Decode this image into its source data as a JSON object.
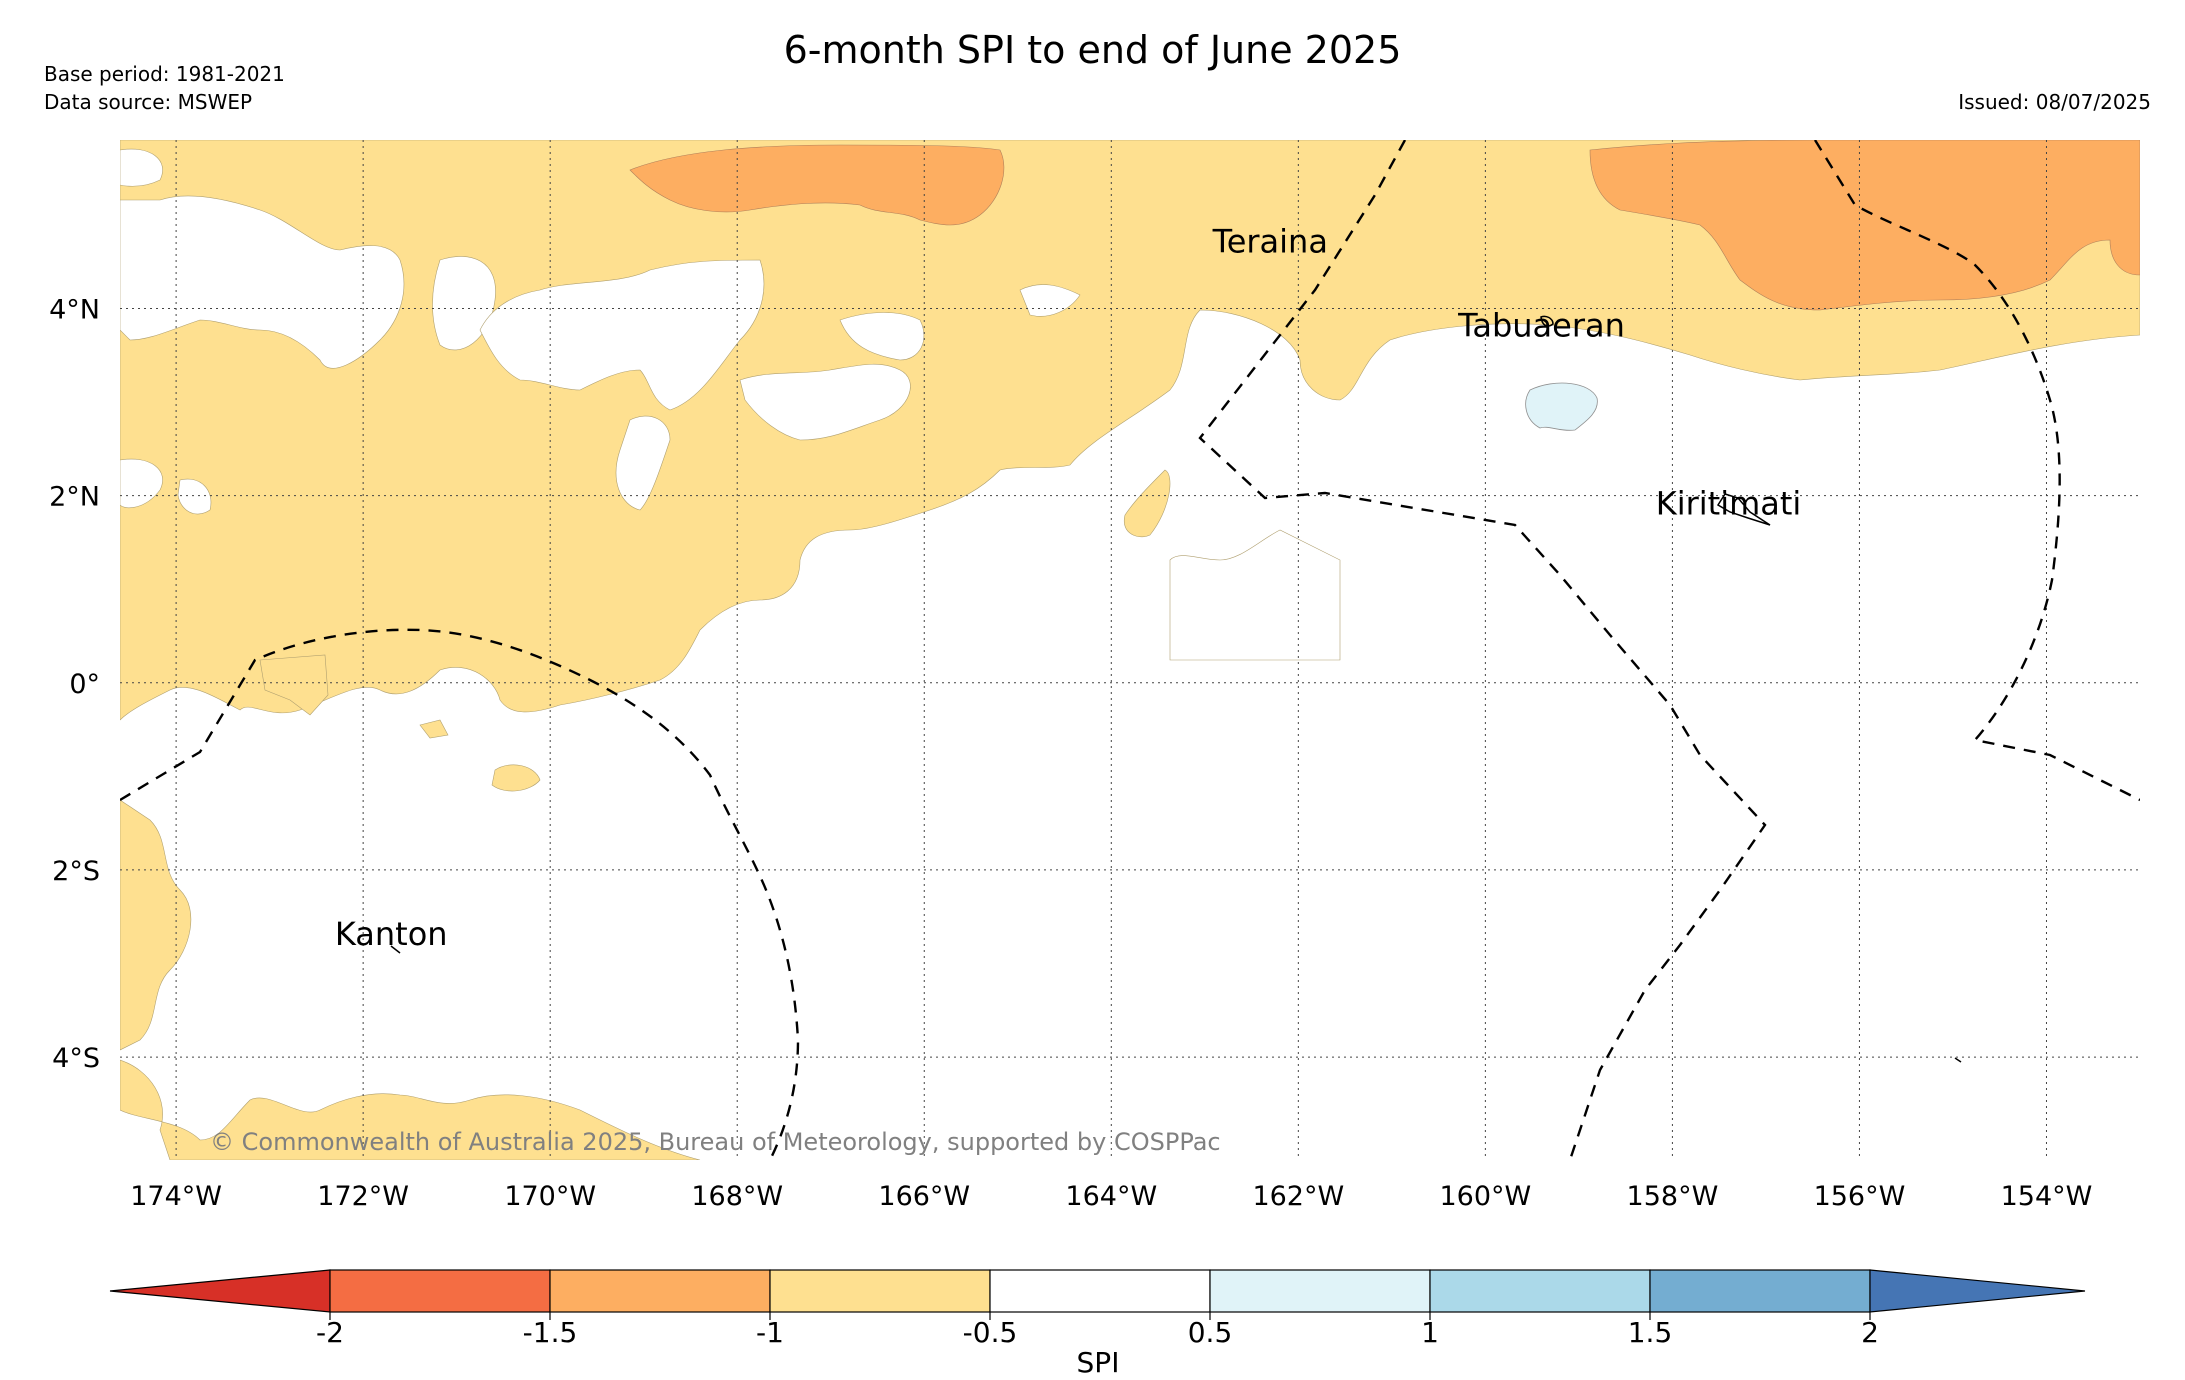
{
  "title": "6-month SPI to end of June 2025",
  "base_period": "Base period: 1981-2021",
  "data_source": "Data source: MSWEP",
  "issued": "Issued: 08/07/2025",
  "copyright": "© Commonwealth of Australia 2025, Bureau of Meteorology, supported by COSPPac",
  "map": {
    "lon_range": [
      -174.6,
      -153.0
    ],
    "lat_range": [
      -5.1,
      5.8
    ],
    "lon_ticks": [
      {
        "value": -174,
        "label": "174°W"
      },
      {
        "value": -172,
        "label": "172°W"
      },
      {
        "value": -170,
        "label": "170°W"
      },
      {
        "value": -168,
        "label": "168°W"
      },
      {
        "value": -166,
        "label": "166°W"
      },
      {
        "value": -164,
        "label": "164°W"
      },
      {
        "value": -162,
        "label": "162°W"
      },
      {
        "value": -160,
        "label": "160°W"
      },
      {
        "value": -158,
        "label": "158°W"
      },
      {
        "value": -156,
        "label": "156°W"
      },
      {
        "value": -154,
        "label": "154°W"
      }
    ],
    "lat_ticks": [
      {
        "value": 4,
        "label": "4°N"
      },
      {
        "value": 2,
        "label": "2°N"
      },
      {
        "value": 0,
        "label": "0°"
      },
      {
        "value": -2,
        "label": "2°S"
      },
      {
        "value": -4,
        "label": "4°S"
      }
    ],
    "places": [
      {
        "name": "Teraina",
        "lon": -162.3,
        "lat": 4.6
      },
      {
        "name": "Tabuaeran",
        "lon": -159.4,
        "lat": 3.7
      },
      {
        "name": "Kiritimati",
        "lon": -157.4,
        "lat": 1.8
      },
      {
        "name": "Kanton",
        "lon": -171.7,
        "lat": -2.8
      }
    ]
  },
  "colorbar": {
    "label": "SPI",
    "ticks": [
      "-2",
      "-1.5",
      "-1",
      "-0.5",
      "0.5",
      "1",
      "1.5",
      "2"
    ],
    "colors": [
      "#d73027",
      "#f46d43",
      "#fdae61",
      "#fee090",
      "#ffffff",
      "#e0f3f8",
      "#abd9e9",
      "#74add1",
      "#4575b4"
    ]
  }
}
